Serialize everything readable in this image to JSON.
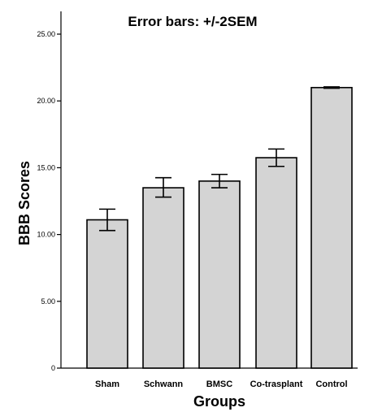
{
  "colors": {
    "bar_fill": "#d4d4d4",
    "bar_stroke": "#000000",
    "axis": "#000000",
    "background": "#ffffff"
  },
  "chart_data": {
    "type": "bar",
    "title": "Error bars: +/-2SEM",
    "xlabel": "Groups",
    "ylabel": "BBB Scores",
    "categories": [
      "Sham",
      "Schwann",
      "BMSC",
      "Co-trasplant",
      "Control"
    ],
    "values": [
      11.1,
      13.5,
      14.0,
      15.75,
      21.0
    ],
    "error_low": [
      10.3,
      12.8,
      13.5,
      15.1,
      20.95
    ],
    "error_high": [
      11.9,
      14.25,
      14.5,
      16.4,
      21.05
    ],
    "ylim": [
      0,
      25
    ],
    "yticks": [
      0,
      5,
      10,
      15,
      20,
      25
    ],
    "ytick_labels": [
      "0",
      "5.00",
      "10.00",
      "15.00",
      "20.00",
      "25.00"
    ],
    "grid": false,
    "legend": "none"
  }
}
